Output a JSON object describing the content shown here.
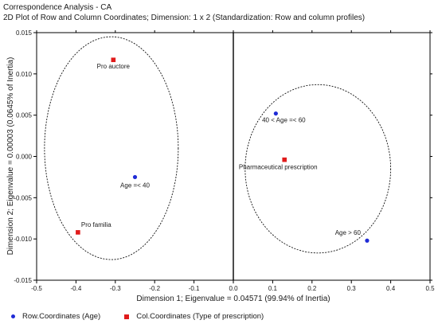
{
  "chart_data": {
    "type": "scatter",
    "title": "Correspondence Analysis - CA",
    "subtitle": "2D Plot of Row and Column Coordinates; Dimension: 1 x 2 (Standardization: Row and column profiles)",
    "xlabel": "Dimension 1; Eigenvalue = 0.04571 (99.94% of Inertia)",
    "ylabel": "Dimension 2; Eigenvalue = 0.00003 (0.0645% of Inertia)",
    "xlim": [
      -0.5,
      0.5
    ],
    "ylim": [
      -0.015,
      0.015
    ],
    "xticks": [
      "-0.5",
      "-0.4",
      "-0.3",
      "-0.2",
      "-0.1",
      "0.0",
      "0.1",
      "0.2",
      "0.3",
      "0.4",
      "0.5"
    ],
    "yticks": [
      "0.015",
      "0.010",
      "0.005",
      "0.000",
      "-0.005",
      "-0.010",
      "-0.015"
    ],
    "grid": false,
    "legend_position": "bottom",
    "series": [
      {
        "name": "Row.Coordinates  (Age)",
        "color": "#1f2bd6",
        "marker": "circle",
        "points": [
          {
            "label": "Age =< 40",
            "x": -0.25,
            "y": -0.0025
          },
          {
            "label": "40 < Age =< 60",
            "x": 0.108,
            "y": 0.0052
          },
          {
            "label": "Age > 60",
            "x": 0.34,
            "y": -0.0102
          }
        ]
      },
      {
        "name": "Col.Coordinates  (Type of prescription)",
        "color": "#e01b1b",
        "marker": "square",
        "points": [
          {
            "label": "Pro auctore",
            "x": -0.305,
            "y": 0.0117
          },
          {
            "label": "Pro familia",
            "x": -0.395,
            "y": -0.0092
          },
          {
            "label": "Pharmaceutical prescription",
            "x": 0.13,
            "y": -0.0004
          }
        ]
      }
    ],
    "confidence_ellipses": [
      {
        "cx": -0.31,
        "cy": 0.001,
        "rx": 0.17,
        "ry": 0.0135
      },
      {
        "cx": 0.215,
        "cy": -0.0015,
        "rx": 0.185,
        "ry": 0.0102
      }
    ]
  }
}
